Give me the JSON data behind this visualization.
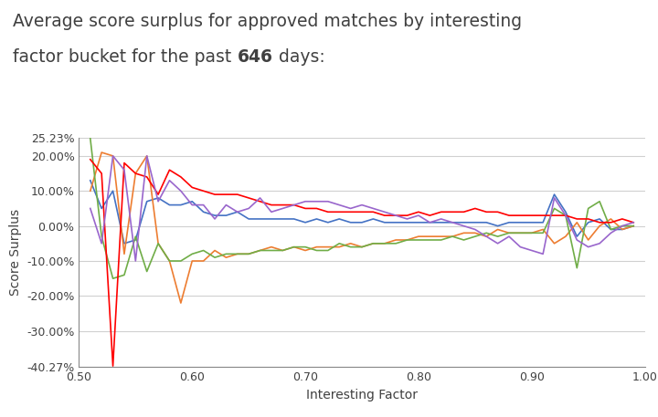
{
  "title_line1": "Average score surplus for approved matches by interesting",
  "title_line2_pre": "factor bucket for the past ",
  "title_bold": "646",
  "title_line2_post": " days:",
  "xlabel": "Interesting Factor",
  "ylabel": "Score Surplus",
  "xlim": [
    0.5,
    1.0
  ],
  "ylim": [
    -0.4027,
    0.2523
  ],
  "yticks": [
    0.2523,
    0.2,
    0.1,
    0.0,
    -0.1,
    -0.2,
    -0.3,
    -0.4027
  ],
  "ytick_labels": [
    "25.23%",
    "20.00%",
    "10.00%",
    "0.00%",
    "-10.00%",
    "-20.00%",
    "-30.00%",
    "-40.27%"
  ],
  "xticks": [
    0.5,
    0.6,
    0.7,
    0.8,
    0.9,
    1.0
  ],
  "xtick_labels": [
    "0.50",
    "0.60",
    "0.70",
    "0.80",
    "0.90",
    "1.00"
  ],
  "series": {
    "Longest Common Substring": {
      "color": "#4472C4",
      "x": [
        0.51,
        0.52,
        0.53,
        0.54,
        0.55,
        0.56,
        0.57,
        0.58,
        0.59,
        0.6,
        0.61,
        0.62,
        0.63,
        0.64,
        0.65,
        0.66,
        0.67,
        0.68,
        0.69,
        0.7,
        0.71,
        0.72,
        0.73,
        0.74,
        0.75,
        0.76,
        0.77,
        0.78,
        0.79,
        0.8,
        0.81,
        0.82,
        0.83,
        0.84,
        0.85,
        0.86,
        0.87,
        0.88,
        0.89,
        0.9,
        0.91,
        0.92,
        0.93,
        0.94,
        0.95,
        0.96,
        0.97,
        0.98,
        0.99
      ],
      "y": [
        0.13,
        0.05,
        0.1,
        -0.05,
        -0.04,
        0.07,
        0.08,
        0.06,
        0.06,
        0.07,
        0.04,
        0.03,
        0.03,
        0.04,
        0.02,
        0.02,
        0.02,
        0.02,
        0.02,
        0.01,
        0.02,
        0.01,
        0.02,
        0.01,
        0.01,
        0.02,
        0.01,
        0.01,
        0.01,
        0.01,
        0.01,
        0.01,
        0.01,
        0.01,
        0.01,
        0.01,
        0.0,
        0.01,
        0.01,
        0.01,
        0.01,
        0.09,
        0.04,
        -0.03,
        0.01,
        0.02,
        -0.01,
        -0.01,
        0.0
      ]
    },
    "Word Count": {
      "color": "#ED7D31",
      "x": [
        0.51,
        0.52,
        0.53,
        0.54,
        0.55,
        0.56,
        0.57,
        0.58,
        0.59,
        0.6,
        0.61,
        0.62,
        0.63,
        0.64,
        0.65,
        0.66,
        0.67,
        0.68,
        0.69,
        0.7,
        0.71,
        0.72,
        0.73,
        0.74,
        0.75,
        0.76,
        0.77,
        0.78,
        0.79,
        0.8,
        0.81,
        0.82,
        0.83,
        0.84,
        0.85,
        0.86,
        0.87,
        0.88,
        0.89,
        0.9,
        0.91,
        0.92,
        0.93,
        0.94,
        0.95,
        0.96,
        0.97,
        0.98,
        0.99
      ],
      "y": [
        0.1,
        0.21,
        0.2,
        -0.08,
        0.15,
        0.2,
        -0.05,
        -0.1,
        -0.22,
        -0.1,
        -0.1,
        -0.07,
        -0.09,
        -0.08,
        -0.08,
        -0.07,
        -0.06,
        -0.07,
        -0.06,
        -0.07,
        -0.06,
        -0.06,
        -0.06,
        -0.05,
        -0.06,
        -0.05,
        -0.05,
        -0.04,
        -0.04,
        -0.03,
        -0.03,
        -0.03,
        -0.03,
        -0.02,
        -0.02,
        -0.03,
        -0.01,
        -0.02,
        -0.02,
        -0.02,
        -0.01,
        -0.05,
        -0.03,
        0.01,
        -0.04,
        0.0,
        0.02,
        -0.01,
        0.0
      ]
    },
    "Edit Distance": {
      "color": "#70AD47",
      "x": [
        0.51,
        0.52,
        0.53,
        0.54,
        0.55,
        0.56,
        0.57,
        0.58,
        0.59,
        0.6,
        0.61,
        0.62,
        0.63,
        0.64,
        0.65,
        0.66,
        0.67,
        0.68,
        0.69,
        0.7,
        0.71,
        0.72,
        0.73,
        0.74,
        0.75,
        0.76,
        0.77,
        0.78,
        0.79,
        0.8,
        0.81,
        0.82,
        0.83,
        0.84,
        0.85,
        0.86,
        0.87,
        0.88,
        0.89,
        0.9,
        0.91,
        0.92,
        0.93,
        0.94,
        0.95,
        0.96,
        0.97,
        0.98,
        0.99
      ],
      "y": [
        0.25,
        -0.03,
        -0.15,
        -0.14,
        -0.03,
        -0.13,
        -0.05,
        -0.1,
        -0.1,
        -0.08,
        -0.07,
        -0.09,
        -0.08,
        -0.08,
        -0.08,
        -0.07,
        -0.07,
        -0.07,
        -0.06,
        -0.06,
        -0.07,
        -0.07,
        -0.05,
        -0.06,
        -0.06,
        -0.05,
        -0.05,
        -0.05,
        -0.04,
        -0.04,
        -0.04,
        -0.04,
        -0.03,
        -0.04,
        -0.03,
        -0.02,
        -0.03,
        -0.02,
        -0.02,
        -0.02,
        -0.02,
        0.05,
        0.03,
        -0.12,
        0.05,
        0.07,
        -0.01,
        0.0,
        0.0
      ]
    },
    "English Words": {
      "color": "#FF0000",
      "x": [
        0.51,
        0.52,
        0.53,
        0.54,
        0.55,
        0.56,
        0.57,
        0.58,
        0.59,
        0.6,
        0.61,
        0.62,
        0.63,
        0.64,
        0.65,
        0.66,
        0.67,
        0.68,
        0.69,
        0.7,
        0.71,
        0.72,
        0.73,
        0.74,
        0.75,
        0.76,
        0.77,
        0.78,
        0.79,
        0.8,
        0.81,
        0.82,
        0.83,
        0.84,
        0.85,
        0.86,
        0.87,
        0.88,
        0.89,
        0.9,
        0.91,
        0.92,
        0.93,
        0.94,
        0.95,
        0.96,
        0.97,
        0.98,
        0.99
      ],
      "y": [
        0.19,
        0.15,
        -0.4,
        0.18,
        0.15,
        0.14,
        0.09,
        0.16,
        0.14,
        0.11,
        0.1,
        0.09,
        0.09,
        0.09,
        0.08,
        0.07,
        0.06,
        0.06,
        0.06,
        0.05,
        0.05,
        0.04,
        0.04,
        0.04,
        0.04,
        0.04,
        0.03,
        0.03,
        0.03,
        0.04,
        0.03,
        0.04,
        0.04,
        0.04,
        0.05,
        0.04,
        0.04,
        0.03,
        0.03,
        0.03,
        0.03,
        0.03,
        0.03,
        0.02,
        0.02,
        0.01,
        0.01,
        0.02,
        0.01
      ]
    },
    "Total Length": {
      "color": "#9966CC",
      "x": [
        0.51,
        0.52,
        0.53,
        0.54,
        0.55,
        0.56,
        0.57,
        0.58,
        0.59,
        0.6,
        0.61,
        0.62,
        0.63,
        0.64,
        0.65,
        0.66,
        0.67,
        0.68,
        0.69,
        0.7,
        0.71,
        0.72,
        0.73,
        0.74,
        0.75,
        0.76,
        0.77,
        0.78,
        0.79,
        0.8,
        0.81,
        0.82,
        0.83,
        0.84,
        0.85,
        0.86,
        0.87,
        0.88,
        0.89,
        0.9,
        0.91,
        0.92,
        0.93,
        0.94,
        0.95,
        0.96,
        0.97,
        0.98,
        0.99
      ],
      "y": [
        0.05,
        -0.05,
        0.2,
        0.16,
        -0.1,
        0.2,
        0.07,
        0.13,
        0.1,
        0.06,
        0.06,
        0.02,
        0.06,
        0.04,
        0.05,
        0.08,
        0.04,
        0.05,
        0.06,
        0.07,
        0.07,
        0.07,
        0.06,
        0.05,
        0.06,
        0.05,
        0.04,
        0.03,
        0.02,
        0.03,
        0.01,
        0.02,
        0.01,
        0.0,
        -0.01,
        -0.03,
        -0.05,
        -0.03,
        -0.06,
        -0.07,
        -0.08,
        0.08,
        0.03,
        -0.04,
        -0.06,
        -0.05,
        -0.02,
        0.0,
        0.01
      ]
    }
  },
  "background_color": "#ffffff",
  "grid_color": "#d0d0d0",
  "title_color": "#404040",
  "axis_color": "#404040",
  "title_fontsize": 13.5,
  "axis_label_fontsize": 10,
  "tick_fontsize": 9,
  "legend_fontsize": 8.5
}
